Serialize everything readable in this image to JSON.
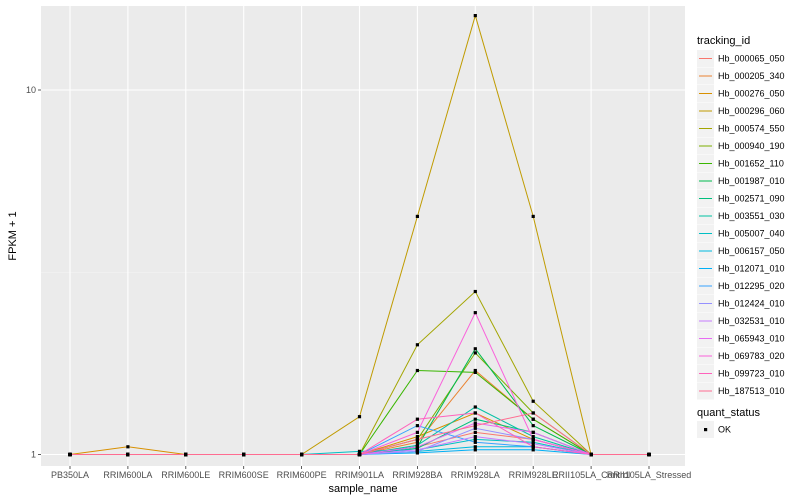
{
  "chart_data": {
    "type": "line",
    "title": "",
    "xlabel": "sample_name",
    "ylabel": "FPKM + 1",
    "y_scale": "log10",
    "ylim": [
      0.93,
      17
    ],
    "y_ticks": [
      1,
      10
    ],
    "y_tick_labels": [
      "1",
      "10"
    ],
    "grid": true,
    "legend_position": "right",
    "background": "#ebebeb",
    "categories": [
      "PB350LA",
      "RRIM600LA",
      "RRIM600LE",
      "RRIM600SE",
      "RRIM600PE",
      "RRIM901LA",
      "RRIM928BA",
      "RRIM928LA",
      "RRIM928LE",
      "RRII105LA_Control",
      "RRII105LA_Stressed"
    ],
    "legend_title": "tracking_id",
    "series": [
      {
        "name": "Hb_000065_050",
        "color": "#F8766D",
        "values": [
          1.0,
          1.0,
          1.0,
          1.0,
          1.0,
          1.0,
          1.05,
          1.15,
          1.1,
          1.0,
          1.0
        ]
      },
      {
        "name": "Hb_000205_340",
        "color": "#EA8331",
        "values": [
          1.0,
          1.0,
          1.0,
          1.0,
          1.0,
          1.0,
          1.08,
          1.7,
          1.25,
          1.0,
          1.0
        ]
      },
      {
        "name": "Hb_000276_050",
        "color": "#D89000",
        "values": [
          1.0,
          1.05,
          1.0,
          1.0,
          1.0,
          1.0,
          1.12,
          1.3,
          1.1,
          1.0,
          1.0
        ]
      },
      {
        "name": "Hb_000296_060",
        "color": "#C09B00",
        "values": [
          1.0,
          1.0,
          1.0,
          1.0,
          1.0,
          1.27,
          4.5,
          16.0,
          4.5,
          1.0,
          1.0
        ]
      },
      {
        "name": "Hb_000574_550",
        "color": "#A3A500",
        "values": [
          1.0,
          1.0,
          1.0,
          1.0,
          1.0,
          1.0,
          2.0,
          2.8,
          1.4,
          1.0,
          1.0
        ]
      },
      {
        "name": "Hb_000940_190",
        "color": "#7CAE00",
        "values": [
          1.0,
          1.0,
          1.0,
          1.0,
          1.0,
          1.0,
          1.1,
          1.9,
          1.3,
          1.0,
          1.0
        ]
      },
      {
        "name": "Hb_001652_110",
        "color": "#39B600",
        "values": [
          1.0,
          1.0,
          1.0,
          1.0,
          1.0,
          1.0,
          1.7,
          1.68,
          1.25,
          1.0,
          1.0
        ]
      },
      {
        "name": "Hb_001987_010",
        "color": "#00BB4E",
        "values": [
          1.0,
          1.0,
          1.0,
          1.0,
          1.0,
          1.0,
          1.05,
          1.95,
          1.2,
          1.0,
          1.0
        ]
      },
      {
        "name": "Hb_002571_090",
        "color": "#00BF7D",
        "values": [
          1.0,
          1.0,
          1.0,
          1.0,
          1.0,
          1.0,
          1.04,
          1.25,
          1.15,
          1.0,
          1.0
        ]
      },
      {
        "name": "Hb_003551_030",
        "color": "#00C1A3",
        "values": [
          1.0,
          1.0,
          1.0,
          1.0,
          1.0,
          1.0,
          1.06,
          1.35,
          1.12,
          1.0,
          1.0
        ]
      },
      {
        "name": "Hb_005007_040",
        "color": "#00BFC4",
        "values": [
          1.0,
          1.0,
          1.0,
          1.0,
          1.0,
          1.02,
          1.03,
          1.1,
          1.08,
          1.0,
          1.0
        ]
      },
      {
        "name": "Hb_006157_050",
        "color": "#00BAE0",
        "values": [
          1.0,
          1.0,
          1.0,
          1.0,
          1.0,
          1.0,
          1.02,
          1.05,
          1.05,
          1.0,
          1.0
        ]
      },
      {
        "name": "Hb_012071_010",
        "color": "#00B0F6",
        "values": [
          1.0,
          1.0,
          1.0,
          1.0,
          1.0,
          1.0,
          1.01,
          1.03,
          1.03,
          1.0,
          1.0
        ]
      },
      {
        "name": "Hb_012295_020",
        "color": "#35A2FF",
        "values": [
          1.0,
          1.0,
          1.0,
          1.0,
          1.0,
          1.0,
          1.2,
          1.08,
          1.05,
          1.0,
          1.0
        ]
      },
      {
        "name": "Hb_012424_010",
        "color": "#9590FF",
        "values": [
          1.0,
          1.0,
          1.0,
          1.0,
          1.0,
          1.0,
          1.02,
          1.18,
          1.1,
          1.0,
          1.0
        ]
      },
      {
        "name": "Hb_032531_010",
        "color": "#C77CFF",
        "values": [
          1.0,
          1.0,
          1.0,
          1.0,
          1.0,
          1.0,
          1.03,
          1.12,
          1.07,
          1.0,
          1.0
        ]
      },
      {
        "name": "Hb_065943_010",
        "color": "#E76BF3",
        "values": [
          1.0,
          1.0,
          1.0,
          1.0,
          1.0,
          1.0,
          1.05,
          1.22,
          1.15,
          1.0,
          1.0
        ]
      },
      {
        "name": "Hb_069783_020",
        "color": "#FA62DB",
        "values": [
          1.0,
          1.0,
          1.0,
          1.0,
          1.0,
          1.0,
          1.15,
          2.45,
          1.1,
          1.0,
          1.0
        ]
      },
      {
        "name": "Hb_099723_010",
        "color": "#FF62BC",
        "values": [
          1.0,
          1.0,
          1.0,
          1.0,
          1.0,
          1.0,
          1.25,
          1.3,
          1.05,
          1.0,
          1.0
        ]
      },
      {
        "name": "Hb_187513_010",
        "color": "#FF6C91",
        "values": [
          1.0,
          1.0,
          1.0,
          1.0,
          1.0,
          1.0,
          1.1,
          1.2,
          1.3,
          1.0,
          1.0
        ]
      }
    ],
    "shape_legend_title": "quant_status",
    "shape_legend_items": [
      "OK"
    ]
  }
}
